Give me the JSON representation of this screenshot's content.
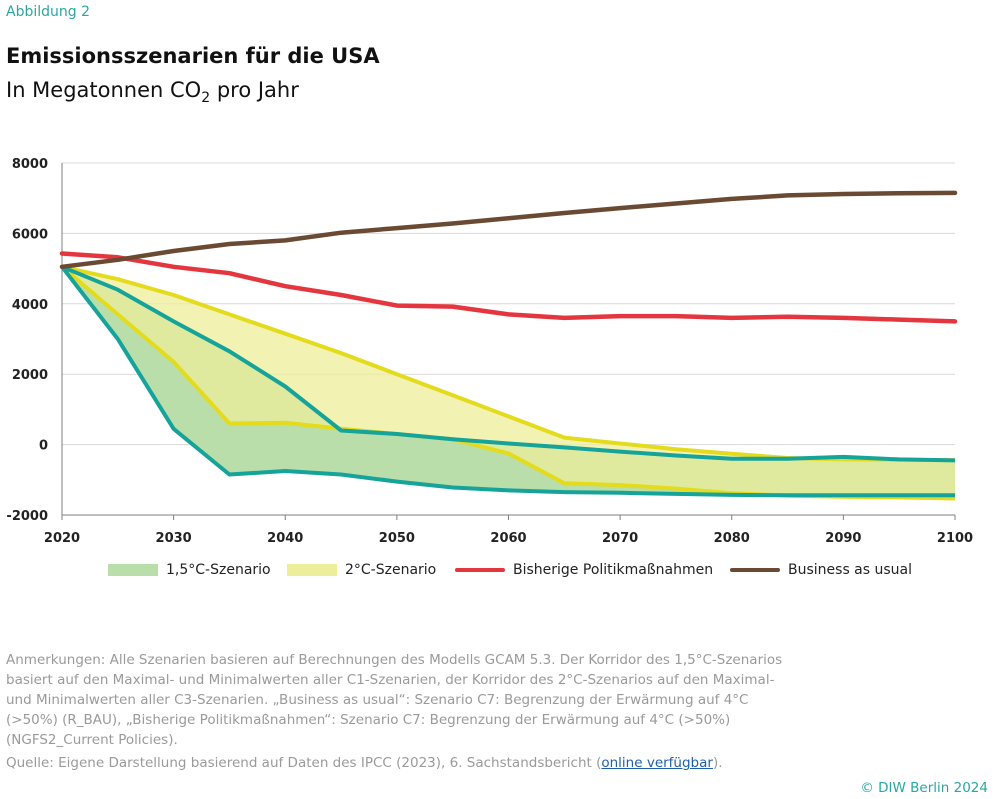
{
  "header": {
    "figure_label": "Abbildung 2",
    "title": "Emissionsszenarien für die USA",
    "subtitle_prefix": "In Megatonnen CO",
    "subtitle_sub": "2",
    "subtitle_suffix": " pro Jahr"
  },
  "colors": {
    "green_fill": "#b9deaa",
    "green_line": "#15a39a",
    "yellow_fill": "#edee9a",
    "yellow_line": "#e3db1c",
    "red": "#e4363f",
    "brown": "#6b4a33",
    "grid": "#d9d9d9",
    "accent": "#2ba6a0"
  },
  "chart_data": {
    "type": "area",
    "title": "Emissionsszenarien für die USA",
    "ylabel": "In Megatonnen CO2 pro Jahr",
    "xlim": [
      2020,
      2100
    ],
    "ylim": [
      -2000,
      8000
    ],
    "x_ticks": [
      2020,
      2030,
      2040,
      2050,
      2060,
      2070,
      2080,
      2090,
      2100
    ],
    "y_ticks": [
      -2000,
      0,
      2000,
      4000,
      6000,
      8000
    ],
    "grid": true,
    "corridors": [
      {
        "name": "1,5°C-Szenario",
        "x_upper": [
          2020,
          2025,
          2030,
          2035,
          2040,
          2045,
          2050,
          2055,
          2060,
          2065,
          2070,
          2075,
          2080,
          2085,
          2090,
          2095,
          2100
        ],
        "upper": [
          5050,
          4400,
          3500,
          2650,
          1650,
          400,
          300,
          150,
          30,
          -80,
          -200,
          -310,
          -400,
          -400,
          -350,
          -420,
          -450
        ],
        "x_lower": [
          2020,
          2025,
          2030,
          2035,
          2040,
          2045,
          2050,
          2055,
          2060,
          2065,
          2070,
          2075,
          2080,
          2085,
          2090,
          2095,
          2100
        ],
        "lower": [
          5050,
          3000,
          450,
          -850,
          -750,
          -850,
          -1050,
          -1220,
          -1300,
          -1350,
          -1370,
          -1400,
          -1430,
          -1440,
          -1440,
          -1440,
          -1440
        ]
      },
      {
        "name": "2°C-Szenario",
        "x_upper": [
          2020,
          2025,
          2030,
          2035,
          2040,
          2045,
          2050,
          2055,
          2060,
          2065,
          2070,
          2075,
          2080,
          2085,
          2090,
          2095,
          2100
        ],
        "upper": [
          5050,
          4700,
          4250,
          3700,
          3150,
          2600,
          2000,
          1400,
          800,
          200,
          30,
          -130,
          -260,
          -380,
          -420,
          -430,
          -440
        ],
        "x_lower": [
          2020,
          2025,
          2030,
          2035,
          2040,
          2045,
          2050,
          2055,
          2060,
          2065,
          2070,
          2075,
          2080,
          2085,
          2090,
          2095,
          2100
        ],
        "lower": [
          5050,
          3700,
          2350,
          600,
          620,
          450,
          300,
          150,
          -250,
          -1100,
          -1150,
          -1250,
          -1380,
          -1450,
          -1480,
          -1500,
          -1530
        ]
      }
    ],
    "series": [
      {
        "name": "Bisherige Politikmaßnahmen",
        "x": [
          2020,
          2025,
          2030,
          2035,
          2040,
          2045,
          2050,
          2055,
          2060,
          2065,
          2070,
          2075,
          2080,
          2085,
          2090,
          2095,
          2100
        ],
        "values": [
          5430,
          5320,
          5050,
          4870,
          4500,
          4250,
          3950,
          3920,
          3700,
          3600,
          3650,
          3650,
          3600,
          3630,
          3600,
          3550,
          3500
        ]
      },
      {
        "name": "Business as usual",
        "x": [
          2020,
          2025,
          2030,
          2035,
          2040,
          2045,
          2050,
          2055,
          2060,
          2065,
          2070,
          2075,
          2080,
          2085,
          2090,
          2095,
          2100
        ],
        "values": [
          5050,
          5250,
          5500,
          5700,
          5800,
          6020,
          6150,
          6280,
          6430,
          6580,
          6720,
          6850,
          6980,
          7080,
          7120,
          7140,
          7150
        ]
      }
    ],
    "legend": [
      "1,5°C-Szenario",
      "2°C-Szenario",
      "Bisherige Politikmaßnahmen",
      "Business as usual"
    ]
  },
  "footer": {
    "notes": "Anmerkungen: Alle Szenarien basieren auf Berechnungen des Modells GCAM 5.3. Der Korridor des 1,5°C-Szenarios basiert auf den Maximal- und Minimalwerten aller C1-Szenarien, der Korridor des 2°C-Szenarios auf den Maximal- und Minimalwerten aller C3-Szenarien. „Business as usual“: Szenario C7: Begrenzung der Erwärmung auf 4°C (>50%) (R_BAU), „Bisherige Politikmaßnahmen“: Szenario C7: Begrenzung der Erwärmung auf 4°C (>50%) (NGFS2_Current Policies).",
    "source_prefix": "Quelle: Eigene Darstellung basierend auf Daten des IPCC (2023), 6. Sachstandsbericht (",
    "source_link": "online verfügbar",
    "source_suffix": ").",
    "copyright": "© DIW Berlin 2024"
  }
}
